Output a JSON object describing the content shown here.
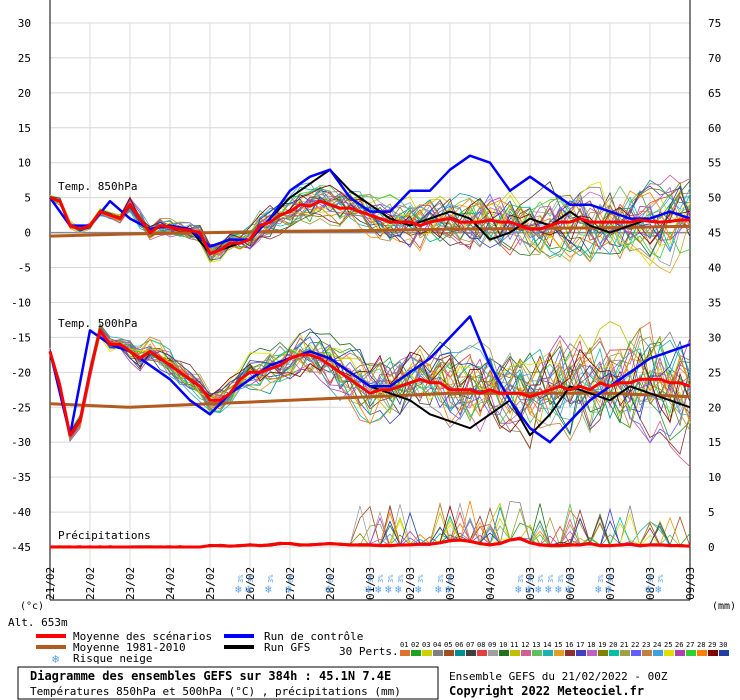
{
  "chart_data": {
    "type": "line",
    "left_axis": {
      "ticks": [
        "30",
        "25",
        "20",
        "15",
        "10",
        "5",
        "0",
        "-5",
        "-10",
        "-15",
        "-20",
        "-25",
        "-30",
        "-35",
        "-40",
        "-45"
      ],
      "range": [
        -45,
        30
      ],
      "unit": "(°c)"
    },
    "right_axis": {
      "ticks": [
        "75",
        "70",
        "65",
        "60",
        "55",
        "50",
        "45",
        "40",
        "35",
        "30",
        "25",
        "20",
        "15",
        "10",
        "5",
        "0"
      ],
      "range": [
        0,
        75
      ],
      "unit": "(mm)"
    },
    "x_labels": [
      "21/02",
      "22/02",
      "23/02",
      "24/02",
      "25/02",
      "26/02",
      "27/02",
      "28/02",
      "01/03",
      "02/03",
      "03/03",
      "04/03",
      "05/03",
      "06/03",
      "07/03",
      "08/03",
      "09/03"
    ],
    "x_range_hours": [
      0,
      384
    ],
    "panels": [
      {
        "name": "temp850",
        "label": "Temp. 850hPa"
      },
      {
        "name": "temp500",
        "label": "Temp. 500hPa"
      },
      {
        "name": "precip",
        "label": "Précipitations"
      }
    ],
    "series": {
      "mean_scenarios": {
        "temp850_x": [
          0,
          6,
          12,
          18,
          24,
          30,
          36,
          42,
          48,
          54,
          60,
          66,
          72,
          78,
          84,
          90,
          96,
          102,
          108,
          114,
          120,
          126,
          132,
          138,
          144,
          150,
          156,
          162,
          168,
          174,
          180,
          186,
          192,
          198,
          204,
          210,
          216,
          222,
          228,
          234,
          240,
          246,
          252,
          258,
          264,
          270,
          276,
          282,
          288,
          294,
          300,
          306,
          312,
          318,
          324,
          330,
          336,
          342,
          348,
          354,
          360,
          366,
          372,
          378,
          384
        ],
        "temp850_y": [
          5,
          4.5,
          1,
          0.5,
          1,
          3,
          2.5,
          2,
          4,
          2,
          0,
          1,
          0.8,
          0.5,
          0.3,
          0,
          -3,
          -2.5,
          -1.5,
          -1.5,
          -1,
          1,
          1.5,
          2.5,
          3,
          4,
          3.8,
          4.5,
          4,
          3.5,
          3.5,
          3,
          2.5,
          2,
          1.5,
          1.5,
          1.5,
          1,
          1.5,
          1.8,
          2,
          1.5,
          1.5,
          1.5,
          1.8,
          1.5,
          1.5,
          1,
          0.5,
          0.5,
          1,
          1.5,
          1.5,
          2,
          1.5,
          1.5,
          1.5,
          1.5,
          1.5,
          1.8,
          1.6,
          1.5,
          1.6,
          1.8,
          1.8
        ],
        "temp500_x": [
          0,
          6,
          12,
          18,
          24,
          30,
          36,
          42,
          48,
          54,
          60,
          66,
          72,
          78,
          84,
          90,
          96,
          102,
          108,
          114,
          120,
          126,
          132,
          138,
          144,
          150,
          156,
          162,
          168,
          174,
          180,
          186,
          192,
          198,
          204,
          210,
          216,
          222,
          228,
          234,
          240,
          246,
          252,
          258,
          264,
          270,
          276,
          282,
          288,
          294,
          300,
          306,
          312,
          318,
          324,
          330,
          336,
          342,
          348,
          354,
          360,
          366,
          372,
          378,
          384
        ],
        "temp500_y": [
          -17,
          -22,
          -29,
          -27,
          -20,
          -14,
          -16,
          -16,
          -17,
          -18,
          -17,
          -18,
          -19,
          -20,
          -21,
          -22,
          -24,
          -24,
          -23,
          -21,
          -20,
          -20,
          -19.5,
          -19,
          -18,
          -17.5,
          -17.5,
          -18,
          -19,
          -20,
          -21,
          -22,
          -23,
          -22.5,
          -22.5,
          -22,
          -21.5,
          -21,
          -21.5,
          -21.5,
          -22.5,
          -22.5,
          -22.5,
          -23,
          -22.5,
          -23,
          -23,
          -23,
          -23.5,
          -23,
          -22.5,
          -22,
          -22.5,
          -22,
          -22.5,
          -21.5,
          -22,
          -21.5,
          -21.5,
          -21,
          -21,
          -21,
          -21.5,
          -21.5,
          -22
        ],
        "precip_mm": [
          0,
          0,
          0,
          0,
          0,
          0,
          0,
          0,
          0,
          0,
          0,
          0,
          0,
          0,
          0,
          0,
          0.2,
          0.2,
          0.1,
          0.2,
          0.3,
          0.2,
          0.3,
          0.5,
          0.5,
          0.3,
          0.3,
          0.4,
          0.5,
          0.4,
          0.3,
          0.3,
          0.3,
          0.2,
          0.2,
          0.3,
          0.3,
          0.4,
          0.4,
          0.6,
          0.9,
          1,
          0.8,
          0.5,
          0.3,
          0.5,
          1,
          1.2,
          0.6,
          0.3,
          0.2,
          0.2,
          0.3,
          0.3,
          0.5,
          0.2,
          0.2,
          0.3,
          0.4,
          0.2,
          0.3,
          0.3,
          0.2,
          0.2,
          0.1
        ]
      },
      "mean_1981_2010": {
        "temp850_x": [
          0,
          48,
          96,
          144,
          192,
          240,
          288,
          336,
          384
        ],
        "temp850_y": [
          -0.5,
          -0.2,
          0,
          0.2,
          0.3,
          0.5,
          0.6,
          0.7,
          0.9
        ],
        "temp500_x": [
          0,
          48,
          96,
          144,
          192,
          240,
          288,
          336,
          384
        ],
        "temp500_y": [
          -24.5,
          -25,
          -24.5,
          -24,
          -23.5,
          -23,
          -23,
          -23,
          -23.5
        ]
      },
      "control_run": {
        "temp850_x": [
          0,
          12,
          24,
          36,
          48,
          60,
          72,
          84,
          96,
          108,
          120,
          132,
          144,
          156,
          168,
          180,
          192,
          204,
          216,
          228,
          240,
          252,
          264,
          276,
          288,
          300,
          312,
          324,
          336,
          348,
          360,
          372,
          384
        ],
        "temp850_y": [
          5,
          1,
          1,
          4.5,
          2,
          0.5,
          1,
          0.5,
          -2,
          -1,
          -1,
          2,
          6,
          8,
          9,
          5,
          3,
          3,
          6,
          6,
          9,
          11,
          10,
          6,
          8,
          6,
          4,
          4,
          3,
          2,
          2,
          3,
          2
        ],
        "temp500_x": [
          0,
          12,
          24,
          36,
          48,
          60,
          72,
          84,
          96,
          108,
          120,
          132,
          144,
          156,
          168,
          180,
          192,
          204,
          216,
          228,
          240,
          252,
          264,
          276,
          288,
          300,
          312,
          324,
          336,
          348,
          360,
          372,
          384
        ],
        "temp500_y": [
          -17,
          -29,
          -14,
          -16,
          -17,
          -19,
          -21,
          -24,
          -26,
          -23,
          -21,
          -19,
          -18,
          -17,
          -18,
          -20,
          -22,
          -22,
          -20,
          -18,
          -15,
          -12,
          -19,
          -24,
          -28,
          -30,
          -27,
          -24,
          -22,
          -20,
          -18,
          -17,
          -16
        ]
      },
      "gfs_run": {
        "temp850_x": [
          0,
          12,
          24,
          36,
          48,
          60,
          72,
          84,
          96,
          108,
          120,
          132,
          144,
          156,
          168,
          180,
          192,
          204,
          216,
          228,
          240,
          252,
          264,
          276,
          288,
          300,
          312,
          324,
          336,
          348,
          360,
          372,
          384
        ],
        "temp850_y": [
          5,
          1,
          1,
          4.5,
          2,
          0.5,
          1,
          0.5,
          -3,
          -2,
          -1,
          2,
          5,
          7,
          9,
          6,
          4,
          2,
          1,
          2,
          3,
          2,
          -1,
          0,
          2,
          1,
          3,
          1,
          0,
          1,
          2,
          3,
          2
        ],
        "temp500_x": [
          0,
          12,
          24,
          36,
          48,
          60,
          72,
          84,
          96,
          108,
          120,
          132,
          144,
          156,
          168,
          180,
          192,
          204,
          216,
          228,
          240,
          252,
          264,
          276,
          288,
          300,
          312,
          324,
          336,
          348,
          360,
          372,
          384
        ],
        "temp500_y": [
          -17,
          -29,
          -14,
          -16,
          -17,
          -19,
          -21,
          -24,
          -26,
          -23,
          -21,
          -19,
          -18,
          -17,
          -18,
          -20,
          -22,
          -23,
          -24,
          -26,
          -27,
          -28,
          -26,
          -24,
          -29,
          -26,
          -22,
          -23,
          -24,
          -22,
          -23,
          -24,
          -25
        ]
      }
    },
    "snow_risk": {
      "marks": [
        {
          "hour": 114,
          "pct": "3%"
        },
        {
          "hour": 120,
          "pct": "3%"
        },
        {
          "hour": 132,
          "pct": "3%"
        },
        {
          "hour": 144,
          "pct": "6%"
        },
        {
          "hour": 168,
          "pct": "6%"
        },
        {
          "hour": 192,
          "pct": "3%"
        },
        {
          "hour": 198,
          "pct": "3%"
        },
        {
          "hour": 204,
          "pct": "3%"
        },
        {
          "hour": 210,
          "pct": "3%"
        },
        {
          "hour": 222,
          "pct": "3%"
        },
        {
          "hour": 234,
          "pct": "3%"
        },
        {
          "hour": 240,
          "pct": "6%"
        },
        {
          "hour": 282,
          "pct": "3%"
        },
        {
          "hour": 288,
          "pct": "3%"
        },
        {
          "hour": 294,
          "pct": "3%"
        },
        {
          "hour": 300,
          "pct": "3%"
        },
        {
          "hour": 306,
          "pct": "3%"
        },
        {
          "hour": 312,
          "pct": "3%"
        },
        {
          "hour": 330,
          "pct": "3%"
        },
        {
          "hour": 336,
          "pct": "3%"
        },
        {
          "hour": 360,
          "pct": "3%"
        },
        {
          "hour": 366,
          "pct": "3%"
        }
      ]
    },
    "colors": {
      "mean_scenarios": "#ff0000",
      "mean_1981_2010": "#b35a1f",
      "control_run": "#0000ff",
      "gfs_run": "#000000",
      "grid": "#d8d8d8",
      "snow": "#5aa0e6"
    }
  },
  "labels": {
    "alt": "Alt. 653m",
    "legend": {
      "mean_scenarios": "Moyenne des scénarios",
      "mean_1981_2010": "Moyenne 1981-2010",
      "control_run": "Run de contrôle",
      "gfs_run": "Run GFS",
      "snow_risk": "Risque neige"
    },
    "perts_label": "30 Perts.",
    "perts": [
      "01",
      "02",
      "03",
      "04",
      "05",
      "06",
      "07",
      "08",
      "09",
      "10",
      "11",
      "12",
      "13",
      "14",
      "15",
      "16",
      "17",
      "18",
      "19",
      "20",
      "21",
      "22",
      "23",
      "24",
      "25",
      "26",
      "27",
      "28",
      "29",
      "30"
    ],
    "perts_colors": [
      "#e07030",
      "#20a020",
      "#d0d000",
      "#808080",
      "#a05020",
      "#009090",
      "#404040",
      "#e04040",
      "#a0a0a0",
      "#207020",
      "#c0c000",
      "#d06090",
      "#60c060",
      "#20b0b0",
      "#e0a020",
      "#903030",
      "#4040c0",
      "#c060c0",
      "#808000",
      "#00c0a0",
      "#a0a040",
      "#6060ff",
      "#c08040",
      "#40a0e0",
      "#e0e000",
      "#b040b0",
      "#30d030",
      "#ff8000",
      "#800000",
      "#2040a0"
    ],
    "footer_title": "Diagramme des ensembles GEFS sur 384h : 45.1N 7.4E",
    "footer_subtitle": "Températures 850hPa et 500hPa (°C) , précipitations (mm)",
    "ensemble_run": "Ensemble GEFS du 21/02/2022 - 00Z",
    "copyright": "Copyright 2022 Meteociel.fr"
  }
}
